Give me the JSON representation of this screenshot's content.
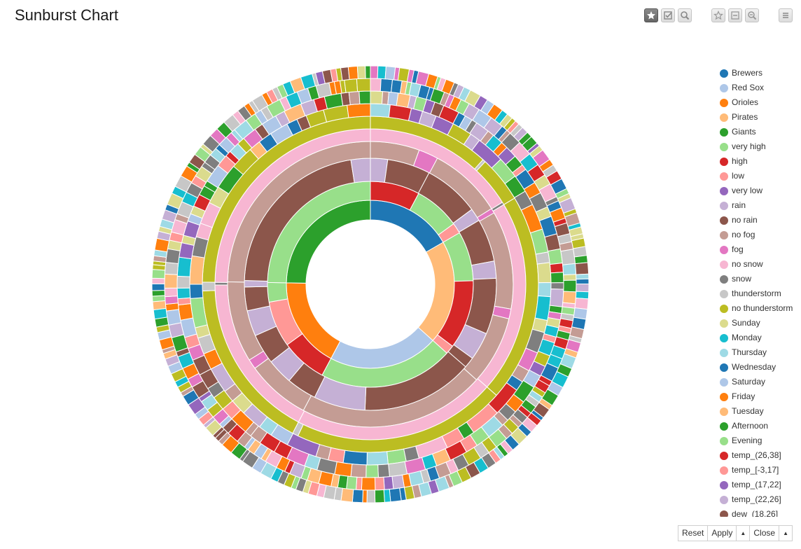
{
  "page": {
    "title": "Sunburst Chart"
  },
  "toolbar": {
    "buttons": [
      {
        "name": "select-mode-button",
        "icon": "star-icon",
        "active": true
      },
      {
        "name": "check-button",
        "icon": "checkbox-icon",
        "active": false
      },
      {
        "name": "zoom-button",
        "icon": "magnifier-icon",
        "active": false
      },
      {
        "name": "unselect-button",
        "icon": "star-outline-icon",
        "active": false
      },
      {
        "name": "clear-button",
        "icon": "box-minus-icon",
        "active": false
      },
      {
        "name": "zoom-out-button",
        "icon": "magnifier-minus-icon",
        "active": false
      },
      {
        "name": "menu-button",
        "icon": "hamburger-icon",
        "active": false
      }
    ]
  },
  "legend": {
    "items": [
      {
        "label": "Brewers",
        "color": "#1f77b4"
      },
      {
        "label": "Red Sox",
        "color": "#aec7e8"
      },
      {
        "label": "Orioles",
        "color": "#ff7f0e"
      },
      {
        "label": "Pirates",
        "color": "#ffbb78"
      },
      {
        "label": "Giants",
        "color": "#2ca02c"
      },
      {
        "label": "very high",
        "color": "#98df8a"
      },
      {
        "label": "high",
        "color": "#d62728"
      },
      {
        "label": "low",
        "color": "#ff9896"
      },
      {
        "label": "very low",
        "color": "#9467bd"
      },
      {
        "label": "rain",
        "color": "#c5b0d5"
      },
      {
        "label": "no rain",
        "color": "#8c564b"
      },
      {
        "label": "no fog",
        "color": "#c49c94"
      },
      {
        "label": "fog",
        "color": "#e377c2"
      },
      {
        "label": "no snow",
        "color": "#f7b6d2"
      },
      {
        "label": "snow",
        "color": "#7f7f7f"
      },
      {
        "label": "thunderstorm",
        "color": "#c7c7c7"
      },
      {
        "label": "no thunderstorm",
        "color": "#bcbd22"
      },
      {
        "label": "Sunday",
        "color": "#dbdb8d"
      },
      {
        "label": "Monday",
        "color": "#17becf"
      },
      {
        "label": "Thursday",
        "color": "#9edae5"
      },
      {
        "label": "Wednesday",
        "color": "#1f77b4"
      },
      {
        "label": "Saturday",
        "color": "#aec7e8"
      },
      {
        "label": "Friday",
        "color": "#ff7f0e"
      },
      {
        "label": "Tuesday",
        "color": "#ffbb78"
      },
      {
        "label": "Afternoon",
        "color": "#2ca02c"
      },
      {
        "label": "Evening",
        "color": "#98df8a"
      },
      {
        "label": "temp_(26,38]",
        "color": "#d62728"
      },
      {
        "label": "temp_[-3,17]",
        "color": "#ff9896"
      },
      {
        "label": "temp_(17,22]",
        "color": "#9467bd"
      },
      {
        "label": "temp_(22,26]",
        "color": "#c5b0d5"
      },
      {
        "label": "dew_(18,26]",
        "color": "#8c564b"
      }
    ]
  },
  "controls": {
    "reset": "Reset",
    "apply": "Apply",
    "close": "Close"
  },
  "chart_data": {
    "type": "sunburst",
    "title": "Sunburst Chart",
    "levels": [
      {
        "segments": [
          {
            "label": "Brewers",
            "color": "#1f77b4",
            "value": 60
          },
          {
            "label": "Pirates",
            "color": "#ffbb78",
            "value": 72
          },
          {
            "label": "Red Sox",
            "color": "#aec7e8",
            "value": 76
          },
          {
            "label": "Orioles",
            "color": "#ff7f0e",
            "value": 63
          },
          {
            "label": "Giants",
            "color": "#2ca02c",
            "value": 89
          }
        ]
      },
      {
        "segments": [
          {
            "label": "high",
            "color": "#d62728",
            "value": 28
          },
          {
            "label": "very high",
            "color": "#98df8a",
            "value": 26
          },
          {
            "label": "low",
            "color": "#ff9896",
            "value": 6
          },
          {
            "label": "very high",
            "color": "#98df8a",
            "value": 28
          },
          {
            "label": "rain",
            "color": "#c5b0d5",
            "value": 0
          },
          {
            "label": "high",
            "color": "#d62728",
            "value": 39
          },
          {
            "label": "low",
            "color": "#ff9896",
            "value": 5
          },
          {
            "label": "very high",
            "color": "#98df8a",
            "value": 76
          },
          {
            "label": "high",
            "color": "#d62728",
            "value": 26
          },
          {
            "label": "low",
            "color": "#ff9896",
            "value": 26
          },
          {
            "label": "very high",
            "color": "#98df8a",
            "value": 11
          },
          {
            "label": "very high",
            "color": "#98df8a",
            "value": 89
          }
        ]
      },
      {
        "segments": [
          {
            "label": "rain",
            "color": "#c5b0d5",
            "value": 8
          },
          {
            "label": "no rain",
            "color": "#8c564b",
            "value": 20
          },
          {
            "label": "no rain",
            "color": "#8c564b",
            "value": 26
          },
          {
            "label": "rain",
            "color": "#c5b0d5",
            "value": 6
          },
          {
            "label": "no rain",
            "color": "#8c564b",
            "value": 20
          },
          {
            "label": "rain",
            "color": "#c5b0d5",
            "value": 8
          },
          {
            "label": "no rain",
            "color": "#8c564b",
            "value": 26
          },
          {
            "label": "rain",
            "color": "#c5b0d5",
            "value": 13
          },
          {
            "label": "no rain",
            "color": "#8c564b",
            "value": 5
          },
          {
            "label": "no rain",
            "color": "#8c564b",
            "value": 52
          },
          {
            "label": "rain",
            "color": "#c5b0d5",
            "value": 24
          },
          {
            "label": "no rain",
            "color": "#8c564b",
            "value": 14
          },
          {
            "label": "rain",
            "color": "#c5b0d5",
            "value": 12
          },
          {
            "label": "no rain",
            "color": "#8c564b",
            "value": 14
          },
          {
            "label": "rain",
            "color": "#c5b0d5",
            "value": 12
          },
          {
            "label": "no rain",
            "color": "#8c564b",
            "value": 11
          },
          {
            "label": "rain",
            "color": "#c5b0d5",
            "value": 3
          },
          {
            "label": "no rain",
            "color": "#8c564b",
            "value": 80
          },
          {
            "label": "rain",
            "color": "#c5b0d5",
            "value": 9
          }
        ]
      },
      {
        "segments": [
          {
            "label": "no fog",
            "color": "#c49c94",
            "value": 20
          },
          {
            "label": "fog",
            "color": "#e377c2",
            "value": 8
          },
          {
            "label": "no fog",
            "color": "#c49c94",
            "value": 30
          },
          {
            "label": "fog",
            "color": "#e377c2",
            "value": 2
          },
          {
            "label": "no fog",
            "color": "#c49c94",
            "value": 40
          },
          {
            "label": "fog",
            "color": "#e377c2",
            "value": 4
          },
          {
            "label": "no fog",
            "color": "#c49c94",
            "value": 28
          },
          {
            "label": "no fog",
            "color": "#c49c94",
            "value": 76
          },
          {
            "label": "no fog",
            "color": "#c49c94",
            "value": 26
          },
          {
            "label": "fog",
            "color": "#e377c2",
            "value": 4
          },
          {
            "label": "no fog",
            "color": "#c49c94",
            "value": 33
          },
          {
            "label": "no fog",
            "color": "#c49c94",
            "value": 89
          }
        ]
      },
      {
        "segments": [
          {
            "label": "no snow",
            "color": "#f7b6d2",
            "value": 58
          },
          {
            "label": "snow",
            "color": "#7f7f7f",
            "value": 1
          },
          {
            "label": "no snow",
            "color": "#f7b6d2",
            "value": 72
          },
          {
            "label": "no snow",
            "color": "#f7b6d2",
            "value": 76
          },
          {
            "label": "no snow",
            "color": "#f7b6d2",
            "value": 62
          },
          {
            "label": "snow",
            "color": "#7f7f7f",
            "value": 1
          },
          {
            "label": "no snow",
            "color": "#f7b6d2",
            "value": 89
          }
        ]
      },
      {
        "segments": [
          {
            "label": "no thunderstorm",
            "color": "#bcbd22",
            "value": 42
          },
          {
            "label": "thunderstorm",
            "color": "#c7c7c7",
            "value": 1
          },
          {
            "label": "no thunderstorm",
            "color": "#bcbd22",
            "value": 16
          },
          {
            "label": "no thunderstorm",
            "color": "#bcbd22",
            "value": 72
          },
          {
            "label": "no thunderstorm",
            "color": "#bcbd22",
            "value": 74
          },
          {
            "label": "thunderstorm",
            "color": "#c7c7c7",
            "value": 2
          },
          {
            "label": "no thunderstorm",
            "color": "#bcbd22",
            "value": 60
          },
          {
            "label": "thunderstorm",
            "color": "#c7c7c7",
            "value": 3
          },
          {
            "label": "no thunderstorm",
            "color": "#bcbd22",
            "value": 89
          }
        ]
      }
    ],
    "outer_rings": 4,
    "outer_ring_palette": [
      "#1f77b4",
      "#aec7e8",
      "#ff7f0e",
      "#ffbb78",
      "#2ca02c",
      "#98df8a",
      "#d62728",
      "#ff9896",
      "#9467bd",
      "#c5b0d5",
      "#8c564b",
      "#c49c94",
      "#e377c2",
      "#f7b6d2",
      "#7f7f7f",
      "#c7c7c7",
      "#bcbd22",
      "#dbdb8d",
      "#17becf",
      "#9edae5"
    ]
  }
}
